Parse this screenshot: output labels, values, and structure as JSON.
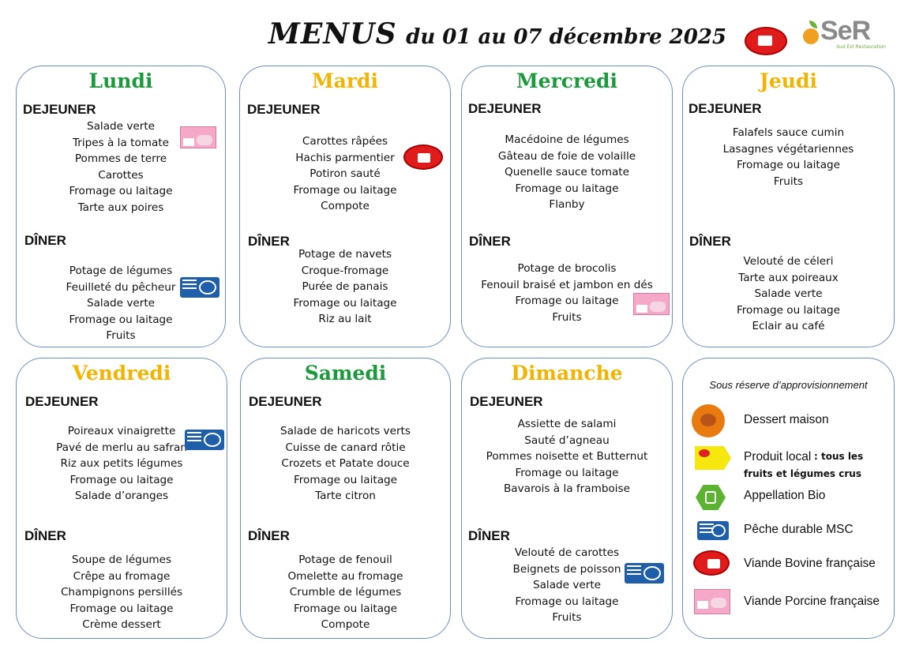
{
  "header": {
    "title_menus": "MENUS",
    "title_dates": "du 01 au 07 décembre 2025",
    "logo_text": "SeR",
    "logo_sub": "Sud Est Restauration"
  },
  "days": [
    {
      "name": "Lundi",
      "color": "#1a9a3b",
      "lunch_label": "DEJEUNER",
      "lunch": [
        "Salade verte",
        "Tripes à la tomate",
        "Pommes de terre",
        "Carottes",
        "Fromage ou laitage",
        "Tarte aux poires"
      ],
      "dinner_label": "DÎNER",
      "dinner": [
        "Potage de légumes",
        "Feuilleté du pêcheur",
        "Salade verte",
        "Fromage ou laitage",
        "Fruits"
      ]
    },
    {
      "name": "Mardi",
      "color": "#f2b400",
      "lunch_label": "DEJEUNER",
      "lunch": [
        "Carottes râpées",
        "Hachis parmentier",
        "Potiron sauté",
        "Fromage ou laitage",
        "Compote"
      ],
      "dinner_label": "DÎNER",
      "dinner": [
        "Potage de navets",
        "Croque-fromage",
        "Purée de panais",
        "Fromage ou laitage",
        "Riz au lait"
      ]
    },
    {
      "name": "Mercredi",
      "color": "#1a9a3b",
      "lunch_label": "DEJEUNER",
      "lunch": [
        "Macédoine de légumes",
        "Gâteau de foie de volaille",
        "Quenelle sauce tomate",
        "Fromage ou laitage",
        "Flanby"
      ],
      "dinner_label": "DÎNER",
      "dinner": [
        "Potage de brocolis",
        "Fenouil braisé et jambon en dés",
        "Fromage ou laitage",
        "Fruits"
      ]
    },
    {
      "name": "Jeudi",
      "color": "#f2b400",
      "lunch_label": "DEJEUNER",
      "lunch": [
        "Falafels sauce cumin",
        "Lasagnes végétariennes",
        "Fromage ou laitage",
        "Fruits"
      ],
      "dinner_label": "DÎNER",
      "dinner": [
        "Velouté de céleri",
        "Tarte aux poireaux",
        "Salade verte",
        "Fromage ou laitage",
        "Eclair au café"
      ]
    },
    {
      "name": "Vendredi",
      "color": "#f2b400",
      "lunch_label": "DEJEUNER",
      "lunch": [
        "Poireaux vinaigrette",
        "Pavé de merlu au safran",
        "Riz aux petits légumes",
        "Fromage ou laitage",
        "Salade d’oranges"
      ],
      "dinner_label": "DÎNER",
      "dinner": [
        "Soupe de légumes",
        "Crêpe au fromage",
        "Champignons persillés",
        "Fromage ou laitage",
        "Crème dessert"
      ]
    },
    {
      "name": "Samedi",
      "color": "#1a9a3b",
      "lunch_label": "DEJEUNER",
      "lunch": [
        "Salade de haricots verts",
        "Cuisse de canard rôtie",
        "Crozets et Patate douce",
        "Fromage ou laitage",
        "Tarte citron"
      ],
      "dinner_label": "DÎNER",
      "dinner": [
        "Potage de fenouil",
        "Omelette au fromage",
        "Crumble de légumes",
        "Fromage ou laitage",
        "Compote"
      ]
    },
    {
      "name": "Dimanche",
      "color": "#f2b400",
      "lunch_label": "DEJEUNER",
      "lunch": [
        "Assiette de salami",
        "Sauté d’agneau",
        "Pommes noisette et Butternut",
        "Fromage ou laitage",
        "Bavarois à la framboise"
      ],
      "dinner_label": "DÎNER",
      "dinner": [
        "Velouté de carottes",
        "Beignets de poisson",
        "Salade verte",
        "Fromage ou laitage",
        "Fruits"
      ]
    }
  ],
  "legend": {
    "title": "Sous réserve d’approvisionnement",
    "items": [
      {
        "icon": "homemade-dessert-icon",
        "label": "Dessert maison"
      },
      {
        "icon": "local-product-icon",
        "label": "Produit local",
        "note1": ": tous les",
        "note2": "fruits et légumes crus"
      },
      {
        "icon": "organic-label-icon",
        "label": "Appellation Bio"
      },
      {
        "icon": "msc-label-icon",
        "label": "Pêche durable MSC"
      },
      {
        "icon": "french-beef-icon",
        "label": "Viande Bovine française"
      },
      {
        "icon": "french-pork-icon",
        "label": "Viande Porcine française"
      }
    ]
  }
}
